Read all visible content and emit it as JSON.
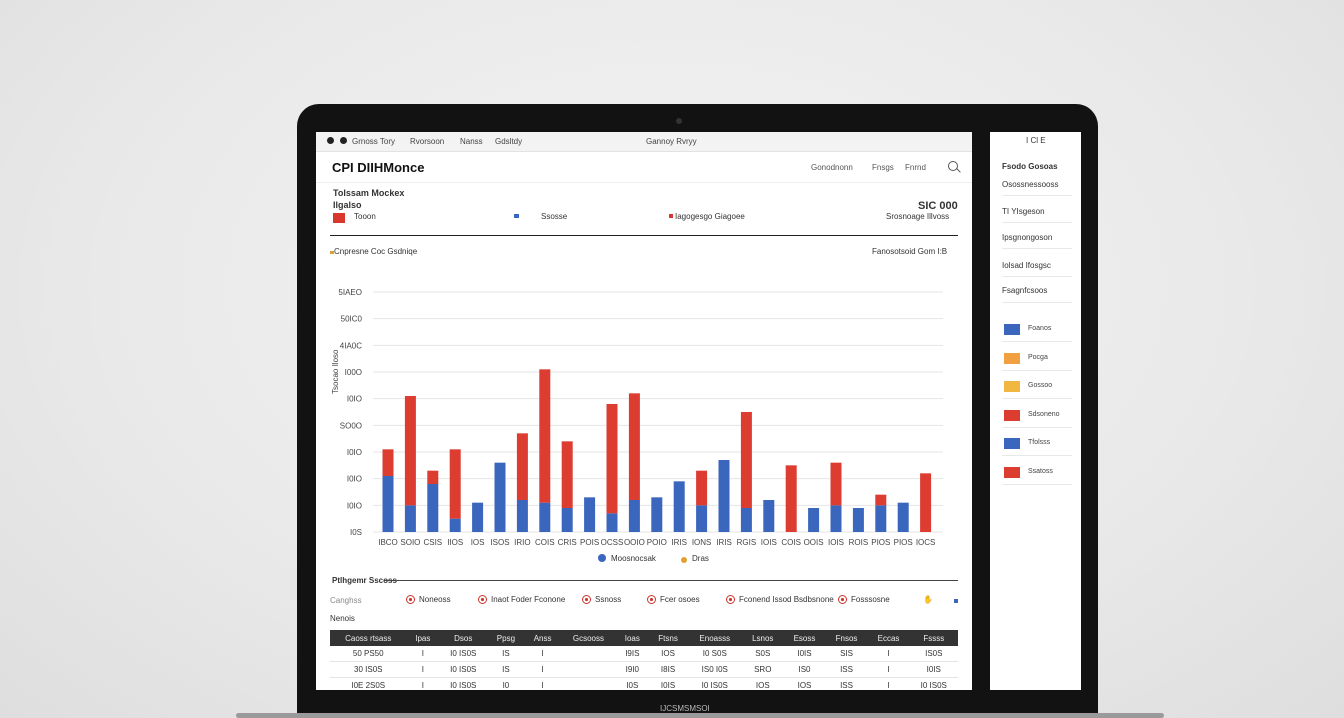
{
  "window": {
    "menu": [
      "Grnoss Tory",
      "Rvorsoon",
      "Nanss",
      "Gdsltdy"
    ],
    "center_title": "Gannoy Rvryy"
  },
  "app": {
    "title": "CPI DIIHMonce",
    "nav": [
      "Gonodnonn",
      "Fnsgs",
      "Fnrnd"
    ]
  },
  "summary": {
    "title": "Tolssam Mockex",
    "subtitle": "Ilgalso",
    "legend": [
      {
        "label": "Tooon",
        "color": "#d9362e"
      },
      {
        "label": "Ssosse",
        "color": "#3a66c0"
      },
      {
        "label": "Iagogesgo Giagoee",
        "color": "#d9362e"
      }
    ],
    "value": "SIC 000",
    "value_sub": "Srosnoage Illvoss"
  },
  "chart": {
    "section_label": "Cnpresne Coc Gsdniqe",
    "section_right": "Fanosotsoid Gom I:B",
    "y_axis_label": "Tsocao Iloso",
    "legend": [
      {
        "label": "Moosnocsak",
        "color": "#3a66c0"
      },
      {
        "label": "Dras",
        "color": "#e0a030"
      }
    ]
  },
  "chart_data": {
    "type": "bar",
    "stacked": true,
    "categories": [
      "IBCO",
      "SOIO",
      "CSIS",
      "IIOS",
      "IOS",
      "ISOS",
      "IRIO",
      "COIS",
      "CRIS",
      "POIS",
      "OCSS",
      "OOIO",
      "POIO",
      "IRIS",
      "IONS",
      "IRIS",
      "RGIS",
      "IOIS",
      "COIS",
      "OOIS",
      "IOIS",
      "ROIS",
      "PIOS",
      "PIOS",
      "IOCS"
    ],
    "y_ticks": [
      "5IAEO",
      "50IC0",
      "4IA0C",
      "I00O",
      "I0IO",
      "SO0O",
      "I0IO",
      "I0IO",
      "I0IO",
      "I0S"
    ],
    "ylim": [
      0,
      9
    ],
    "series": [
      {
        "name": "Moosnocsak",
        "color": "#3b66bd",
        "values": [
          2.1,
          1.0,
          1.8,
          0.5,
          1.1,
          2.6,
          1.2,
          1.1,
          0.9,
          1.3,
          0.7,
          1.2,
          1.3,
          1.9,
          1.0,
          2.7,
          0.9,
          1.2,
          0.0,
          0.9,
          1.0,
          0.9,
          1.0,
          1.1,
          0.0
        ]
      },
      {
        "name": "",
        "color": "#dd3c31",
        "values": [
          1.0,
          4.1,
          0.5,
          2.6,
          0.0,
          0.0,
          2.5,
          5.0,
          2.5,
          0.0,
          4.1,
          4.0,
          0.0,
          0.0,
          1.3,
          0.0,
          3.6,
          0.0,
          2.5,
          0.0,
          1.6,
          0.0,
          0.4,
          0.0,
          2.2
        ]
      }
    ]
  },
  "tabs_section": {
    "title": "Ptlhgemr Sscoss",
    "left_labels": [
      "Canghss",
      "Nenois"
    ],
    "tabs": [
      "Noneoss",
      "Inaot Foder Fconone",
      "Ssnoss",
      "Fcer osoes",
      "Fconend Issod Bsdbsnone",
      "Fosssosne"
    ]
  },
  "table": {
    "headers": [
      "Caoss rtsass",
      "Ipas",
      "Dsos",
      "Ppsg",
      "Anss",
      "Gcsooss",
      "Ioas",
      "Ftsns",
      "Enoasss",
      "Lsnos",
      "Esoss",
      "Fnsos",
      "Eccas",
      "Fssss"
    ],
    "rows": [
      [
        "50 PS50",
        "I",
        "I0 IS0S",
        "IS",
        "I",
        "",
        "I9IS",
        "IOS",
        "I0 S0S",
        "S0S",
        "I0IS",
        "SIS",
        "I",
        "IS0S"
      ],
      [
        "30 IS0S",
        "I",
        "I0 IS0S",
        "IS",
        "I",
        "",
        "I9I0",
        "I8IS",
        "IS0 I0S",
        "SRO",
        "IS0",
        "ISS",
        "I",
        "I0IS"
      ],
      [
        "I0E 2S0S",
        "I",
        "I0 IS0S",
        "I0",
        "I",
        "",
        "I0S",
        "I0IS",
        "I0 IS0S",
        "IOS",
        "IOS",
        "ISS",
        "I",
        "I0 IS0S"
      ]
    ]
  },
  "panel": {
    "top_icons": "I Cl E",
    "items": [
      "Fsodo Gosoas",
      "Osossnessooss",
      "TI YIsgeson",
      "Ipsgnongoson",
      "Iolsad Ifosgsc",
      "Fsagnfcsoos"
    ],
    "legend": [
      {
        "label": "Foanos",
        "color": "#3b66bd"
      },
      {
        "label": "Pocga",
        "color": "#f0a040"
      },
      {
        "label": "Gossoo",
        "color": "#f0b840"
      },
      {
        "label": "Sdsoneno",
        "color": "#dd3c31"
      },
      {
        "label": "Tfolsss",
        "color": "#3b66bd"
      },
      {
        "label": "Ssatoss",
        "color": "#dd3c31"
      }
    ]
  },
  "device": {
    "base_label": "IJCSMSMSOI"
  }
}
